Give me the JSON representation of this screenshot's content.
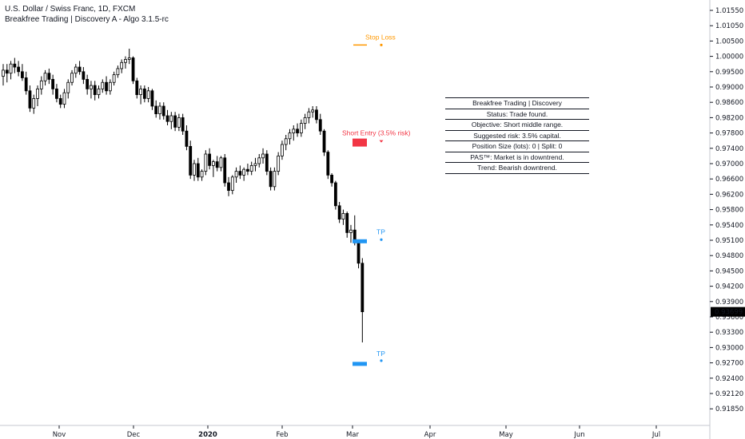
{
  "header": {
    "symbol_line": "U.S. Dollar / Swiss Franc, 1D, FXCM",
    "indicator_line": "Breakfree Trading | Discovery A - Algo 3.1.5-rc"
  },
  "info_table": [
    "Breakfree Trading | Discovery",
    "Status: Trade found.",
    "Objective: Short middle range.",
    "Suggested risk: 3.5% capital.",
    "Position Size (lots): 0 | Split: 0",
    "PAS™: Market is in downtrend.",
    "Trend: Bearish downtrend."
  ],
  "colors": {
    "up": "#ffffff",
    "down": "#000000",
    "stop_loss": "#ff9800",
    "short_entry": "#f23645",
    "take_profit": "#2196f3",
    "last_price_bg": "#000000"
  },
  "chart_data": {
    "type": "candlestick",
    "yticks": [
      "1.01550",
      "1.01050",
      "1.00500",
      "1.00000",
      "0.99500",
      "0.99000",
      "0.98600",
      "0.98200",
      "0.97800",
      "0.97400",
      "0.97000",
      "0.96600",
      "0.96200",
      "0.95800",
      "0.95400",
      "0.95100",
      "0.94800",
      "0.94500",
      "0.94200",
      "0.93900",
      "0.93600",
      "0.93300",
      "0.93000",
      "0.92700",
      "0.92400",
      "0.92120",
      "0.91850"
    ],
    "ylim": [
      0.9185,
      1.0155
    ],
    "xticks": [
      "Nov",
      "Dec",
      "2020",
      "Feb",
      "Mar",
      "Apr",
      "May",
      "Jun",
      "Jul"
    ],
    "last_price": "0.93699",
    "annotations": {
      "stop_loss": {
        "label": "Stop Loss",
        "price": 1.0045
      },
      "short_entry": {
        "label": "Short Entry (3.5% risk)",
        "price": 0.9755
      },
      "tp1": {
        "label": "TP",
        "price": 0.9508
      },
      "tp2": {
        "label": "TP",
        "price": 0.9268
      }
    },
    "ohlc": [
      [
        0.9935,
        0.9975,
        0.9905,
        0.9955
      ],
      [
        0.9955,
        0.9975,
        0.9915,
        0.9945
      ],
      [
        0.9945,
        0.9985,
        0.9925,
        0.9975
      ],
      [
        0.9975,
        0.9995,
        0.9945,
        0.9965
      ],
      [
        0.9965,
        0.9985,
        0.9935,
        0.995
      ],
      [
        0.995,
        0.9975,
        0.992,
        0.993
      ],
      [
        0.993,
        0.995,
        0.988,
        0.989
      ],
      [
        0.989,
        0.9905,
        0.9835,
        0.9845
      ],
      [
        0.9845,
        0.988,
        0.983,
        0.987
      ],
      [
        0.987,
        0.9905,
        0.985,
        0.9895
      ],
      [
        0.9895,
        0.9935,
        0.988,
        0.992
      ],
      [
        0.992,
        0.9955,
        0.9905,
        0.9945
      ],
      [
        0.9945,
        0.996,
        0.991,
        0.9925
      ],
      [
        0.9925,
        0.994,
        0.988,
        0.9895
      ],
      [
        0.9895,
        0.991,
        0.986,
        0.987
      ],
      [
        0.987,
        0.988,
        0.9845,
        0.9855
      ],
      [
        0.9855,
        0.9895,
        0.9845,
        0.9885
      ],
      [
        0.9885,
        0.9925,
        0.987,
        0.9915
      ],
      [
        0.9915,
        0.9955,
        0.9905,
        0.9945
      ],
      [
        0.9945,
        0.9975,
        0.993,
        0.9965
      ],
      [
        0.9965,
        0.9985,
        0.994,
        0.995
      ],
      [
        0.995,
        0.9965,
        0.991,
        0.9925
      ],
      [
        0.9925,
        0.994,
        0.988,
        0.9895
      ],
      [
        0.9895,
        0.992,
        0.987,
        0.9905
      ],
      [
        0.9905,
        0.992,
        0.9865,
        0.988
      ],
      [
        0.988,
        0.9905,
        0.987,
        0.9895
      ],
      [
        0.9895,
        0.9925,
        0.9885,
        0.9915
      ],
      [
        0.9915,
        0.9935,
        0.988,
        0.989
      ],
      [
        0.989,
        0.9925,
        0.988,
        0.9915
      ],
      [
        0.9915,
        0.995,
        0.9905,
        0.994
      ],
      [
        0.994,
        0.997,
        0.993,
        0.996
      ],
      [
        0.996,
        0.999,
        0.9945,
        0.998
      ],
      [
        0.998,
        1.0,
        0.996,
        0.999
      ],
      [
        0.999,
        1.0025,
        0.9975,
        0.9995
      ],
      [
        0.9995,
        1.0,
        0.991,
        0.992
      ],
      [
        0.992,
        0.993,
        0.987,
        0.988
      ],
      [
        0.988,
        0.9905,
        0.9855,
        0.9895
      ],
      [
        0.9895,
        0.9905,
        0.986,
        0.987
      ],
      [
        0.987,
        0.99,
        0.986,
        0.989
      ],
      [
        0.989,
        0.9895,
        0.984,
        0.985
      ],
      [
        0.985,
        0.9865,
        0.982,
        0.983
      ],
      [
        0.983,
        0.986,
        0.9815,
        0.985
      ],
      [
        0.985,
        0.986,
        0.9815,
        0.9825
      ],
      [
        0.9825,
        0.984,
        0.98,
        0.981
      ],
      [
        0.981,
        0.9835,
        0.979,
        0.9825
      ],
      [
        0.9825,
        0.9835,
        0.9785,
        0.9795
      ],
      [
        0.9795,
        0.983,
        0.9785,
        0.982
      ],
      [
        0.982,
        0.983,
        0.9775,
        0.9785
      ],
      [
        0.9785,
        0.98,
        0.9735,
        0.9745
      ],
      [
        0.9745,
        0.976,
        0.966,
        0.967
      ],
      [
        0.967,
        0.971,
        0.9655,
        0.97
      ],
      [
        0.97,
        0.9715,
        0.9655,
        0.9665
      ],
      [
        0.9665,
        0.9685,
        0.9655,
        0.968
      ],
      [
        0.968,
        0.9735,
        0.967,
        0.9725
      ],
      [
        0.9725,
        0.974,
        0.9685,
        0.9695
      ],
      [
        0.9695,
        0.971,
        0.9665,
        0.9705
      ],
      [
        0.9705,
        0.972,
        0.968,
        0.969
      ],
      [
        0.969,
        0.972,
        0.968,
        0.9715
      ],
      [
        0.9715,
        0.9725,
        0.964,
        0.965
      ],
      [
        0.965,
        0.9665,
        0.9615,
        0.963
      ],
      [
        0.963,
        0.967,
        0.962,
        0.9665
      ],
      [
        0.9665,
        0.969,
        0.965,
        0.968
      ],
      [
        0.968,
        0.9695,
        0.966,
        0.967
      ],
      [
        0.967,
        0.969,
        0.9655,
        0.9685
      ],
      [
        0.9685,
        0.97,
        0.967,
        0.968
      ],
      [
        0.968,
        0.9705,
        0.967,
        0.9695
      ],
      [
        0.9695,
        0.9715,
        0.968,
        0.97
      ],
      [
        0.97,
        0.9725,
        0.969,
        0.9715
      ],
      [
        0.9715,
        0.974,
        0.97,
        0.9725
      ],
      [
        0.9725,
        0.9735,
        0.967,
        0.968
      ],
      [
        0.968,
        0.969,
        0.963,
        0.964
      ],
      [
        0.964,
        0.969,
        0.963,
        0.968
      ],
      [
        0.968,
        0.973,
        0.967,
        0.972
      ],
      [
        0.972,
        0.976,
        0.971,
        0.975
      ],
      [
        0.975,
        0.9775,
        0.9735,
        0.9765
      ],
      [
        0.9765,
        0.979,
        0.975,
        0.978
      ],
      [
        0.978,
        0.98,
        0.976,
        0.979
      ],
      [
        0.979,
        0.9805,
        0.977,
        0.978
      ],
      [
        0.978,
        0.9815,
        0.977,
        0.9805
      ],
      [
        0.9805,
        0.983,
        0.979,
        0.982
      ],
      [
        0.982,
        0.9845,
        0.9805,
        0.9835
      ],
      [
        0.9835,
        0.985,
        0.982,
        0.984
      ],
      [
        0.984,
        0.985,
        0.9805,
        0.9815
      ],
      [
        0.9815,
        0.983,
        0.9775,
        0.9785
      ],
      [
        0.9785,
        0.979,
        0.972,
        0.973
      ],
      [
        0.973,
        0.9735,
        0.966,
        0.967
      ],
      [
        0.967,
        0.9675,
        0.964,
        0.965
      ],
      [
        0.965,
        0.9655,
        0.958,
        0.959
      ],
      [
        0.959,
        0.96,
        0.9545,
        0.9555
      ],
      [
        0.9555,
        0.958,
        0.954,
        0.957
      ],
      [
        0.957,
        0.9575,
        0.9515,
        0.9525
      ],
      [
        0.9525,
        0.954,
        0.9505,
        0.953
      ],
      [
        0.953,
        0.9565,
        0.95,
        0.9505
      ],
      [
        0.9505,
        0.951,
        0.9455,
        0.9465
      ],
      [
        0.9465,
        0.9475,
        0.931,
        0.937
      ]
    ]
  }
}
